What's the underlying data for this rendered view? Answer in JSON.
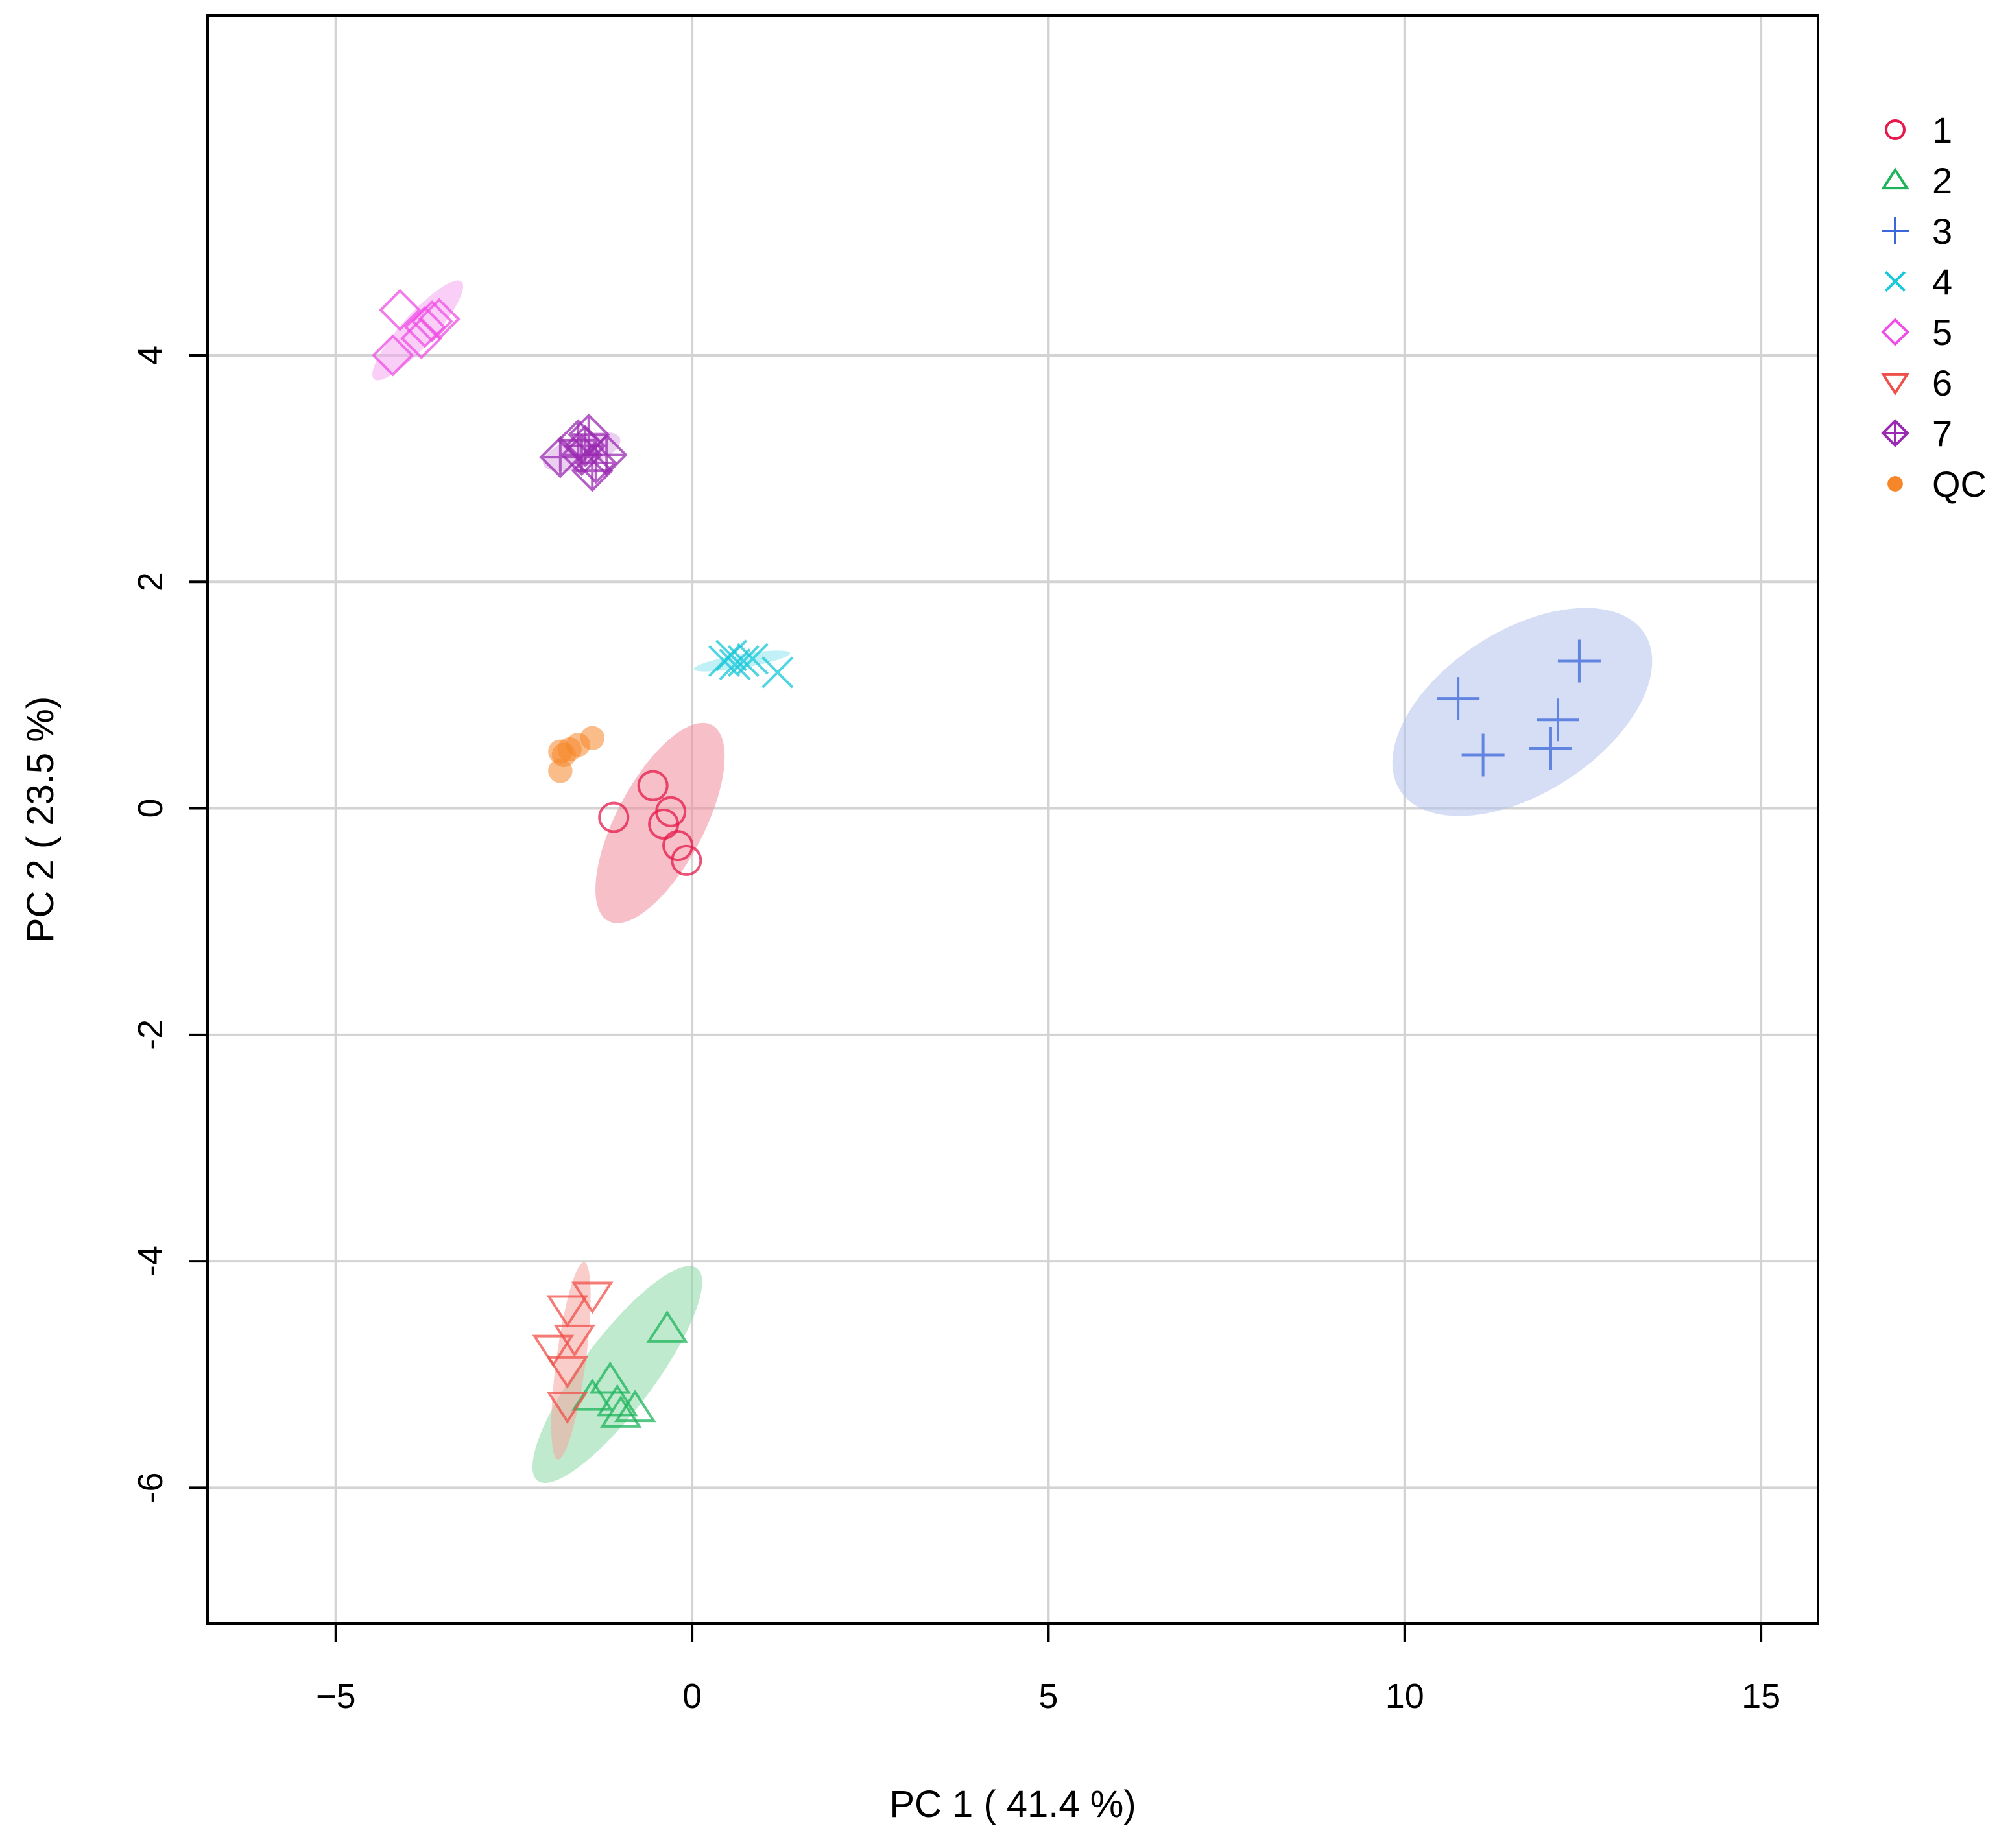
{
  "chart_data": {
    "type": "scatter",
    "title": "",
    "xlabel": "PC 1 ( 41.4 %)",
    "ylabel": "PC 2 ( 23.5 %)",
    "xlim": [
      -6.8,
      15.8
    ],
    "ylim": [
      -7.2,
      7.0
    ],
    "xticks": [
      {
        "value": -5,
        "label": "−5"
      },
      {
        "value": 0,
        "label": "0"
      },
      {
        "value": 5,
        "label": "5"
      },
      {
        "value": 10,
        "label": "10"
      },
      {
        "value": 15,
        "label": "15"
      }
    ],
    "yticks": [
      {
        "value": 4,
        "label": "4"
      },
      {
        "value": 2,
        "label": "2"
      },
      {
        "value": 0,
        "label": "0"
      },
      {
        "value": -2,
        "label": "-2"
      },
      {
        "value": -4,
        "label": "-4"
      },
      {
        "value": -6,
        "label": "-6"
      }
    ],
    "grid": true,
    "legend_position": "top-right, outside plot",
    "series": [
      {
        "name": "1",
        "marker": "circle",
        "color": "#e6194b",
        "points": [
          [
            -1.1,
            -0.08
          ],
          [
            -0.55,
            0.2
          ],
          [
            -0.3,
            -0.03
          ],
          [
            -0.4,
            -0.14
          ],
          [
            -0.2,
            -0.33
          ],
          [
            -0.08,
            -0.46
          ]
        ],
        "ellipse": {
          "cx": -0.45,
          "cy": -0.13,
          "rx": 1.13,
          "ry": 0.48,
          "angle": 50,
          "fill": "#f08a9a"
        }
      },
      {
        "name": "2",
        "marker": "triangle",
        "color": "#1db35b",
        "points": [
          [
            -0.35,
            -4.6
          ],
          [
            -1.15,
            -5.05
          ],
          [
            -1.4,
            -5.2
          ],
          [
            -1.05,
            -5.25
          ],
          [
            -0.8,
            -5.3
          ],
          [
            -1.0,
            -5.35
          ]
        ],
        "ellipse": {
          "cx": -1.05,
          "cy": -5.0,
          "rx": 1.46,
          "ry": 0.37,
          "angle": 40,
          "fill": "#8ad8a6"
        }
      },
      {
        "name": "3",
        "marker": "plus",
        "color": "#3a67d9",
        "points": [
          [
            10.75,
            0.97
          ],
          [
            11.1,
            0.47
          ],
          [
            12.05,
            0.53
          ],
          [
            12.15,
            0.78
          ],
          [
            12.45,
            1.3
          ]
        ],
        "ellipse": {
          "cx": 11.65,
          "cy": 0.85,
          "rx": 1.85,
          "ry": 0.75,
          "angle": 22,
          "fill": "#b4c3ee"
        }
      },
      {
        "name": "4",
        "marker": "x",
        "color": "#19c8d9",
        "points": [
          [
            0.45,
            1.3
          ],
          [
            0.55,
            1.35
          ],
          [
            0.6,
            1.27
          ],
          [
            0.72,
            1.3
          ],
          [
            0.85,
            1.32
          ],
          [
            1.2,
            1.2
          ]
        ],
        "ellipse": {
          "cx": 0.7,
          "cy": 1.3,
          "rx": 0.68,
          "ry": 0.06,
          "angle": 6,
          "fill": "#8ee6ef"
        }
      },
      {
        "name": "5",
        "marker": "diamond",
        "color": "#f04ee6",
        "points": [
          [
            -4.1,
            4.4
          ],
          [
            -3.75,
            4.25
          ],
          [
            -3.65,
            4.3
          ],
          [
            -3.55,
            4.32
          ],
          [
            -3.8,
            4.15
          ],
          [
            -4.2,
            4.0
          ]
        ],
        "ellipse": {
          "cx": -3.85,
          "cy": 4.22,
          "rx": 0.75,
          "ry": 0.16,
          "angle": 35,
          "fill": "#f4a8f0"
        }
      },
      {
        "name": "6",
        "marker": "triangle-down",
        "color": "#f0504a",
        "points": [
          [
            -1.4,
            -4.3
          ],
          [
            -1.75,
            -4.42
          ],
          [
            -1.65,
            -4.68
          ],
          [
            -1.95,
            -4.77
          ],
          [
            -1.75,
            -4.96
          ],
          [
            -1.75,
            -5.27
          ]
        ],
        "ellipse": {
          "cx": -1.7,
          "cy": -4.88,
          "rx": 0.89,
          "ry": 0.2,
          "angle": 78,
          "fill": "#f4a59f"
        }
      },
      {
        "name": "7",
        "marker": "diamond-plus",
        "color": "#9a2ab2",
        "points": [
          [
            -1.85,
            3.1
          ],
          [
            -1.6,
            3.25
          ],
          [
            -1.5,
            3.2
          ],
          [
            -1.55,
            3.12
          ],
          [
            -1.35,
            3.05
          ],
          [
            -1.2,
            3.12
          ],
          [
            -1.45,
            3.3
          ],
          [
            -1.4,
            2.98
          ]
        ],
        "ellipse": {
          "cx": -1.55,
          "cy": 3.15,
          "rx": 0.55,
          "ry": 0.14,
          "angle": 12,
          "fill": "#d8a7e5"
        }
      },
      {
        "name": "QC",
        "marker": "filled-circle",
        "color": "#f5862a",
        "points": [
          [
            -1.4,
            0.62
          ],
          [
            -1.6,
            0.56
          ],
          [
            -1.72,
            0.52
          ],
          [
            -1.8,
            0.47
          ],
          [
            -1.85,
            0.5
          ],
          [
            -1.85,
            0.33
          ]
        ]
      }
    ]
  }
}
